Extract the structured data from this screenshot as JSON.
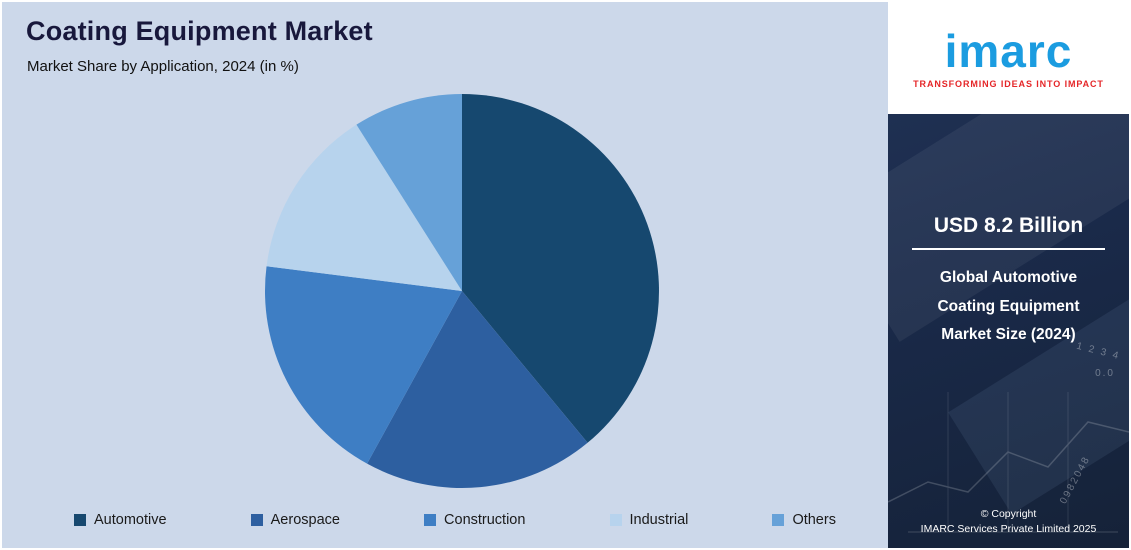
{
  "header": {
    "title": "Coating Equipment Market",
    "subtitle": "Market Share by Application, 2024 (in %)"
  },
  "chart_data": {
    "type": "pie",
    "title": "Coating Equipment Market — Market Share by Application, 2024 (in %)",
    "categories": [
      "Automotive",
      "Aerospace",
      "Construction",
      "Industrial",
      "Others"
    ],
    "values": [
      39,
      19,
      19,
      14,
      9
    ],
    "colors": [
      "#16486f",
      "#2d5fa0",
      "#3e7ec4",
      "#b7d3ed",
      "#66a1d8"
    ],
    "value_labels_shown": false,
    "legend_position": "bottom",
    "start_angle": "top",
    "direction": "clockwise",
    "background": "#ccd8ea"
  },
  "sidebar": {
    "logo": {
      "text": "imarc",
      "tagline": "TRANSFORMING IDEAS INTO IMPACT"
    },
    "stat": {
      "value": "USD 8.2 Billion",
      "label": "Global Automotive Coating Equipment Market Size (2024)"
    },
    "watermarks": [
      "0.0",
      "1 2 3 4",
      "0982048"
    ],
    "copyright": {
      "line1": "© Copyright",
      "line2": "IMARC Services Private Limited 2025"
    }
  },
  "colors": {
    "main_background": "#ccd8ea",
    "sidebar_background": "#1a2a4a",
    "title_text": "#18183c",
    "logo_blue": "#1b9ce0",
    "tagline_red": "#e52628",
    "stat_text": "#ffffff"
  }
}
